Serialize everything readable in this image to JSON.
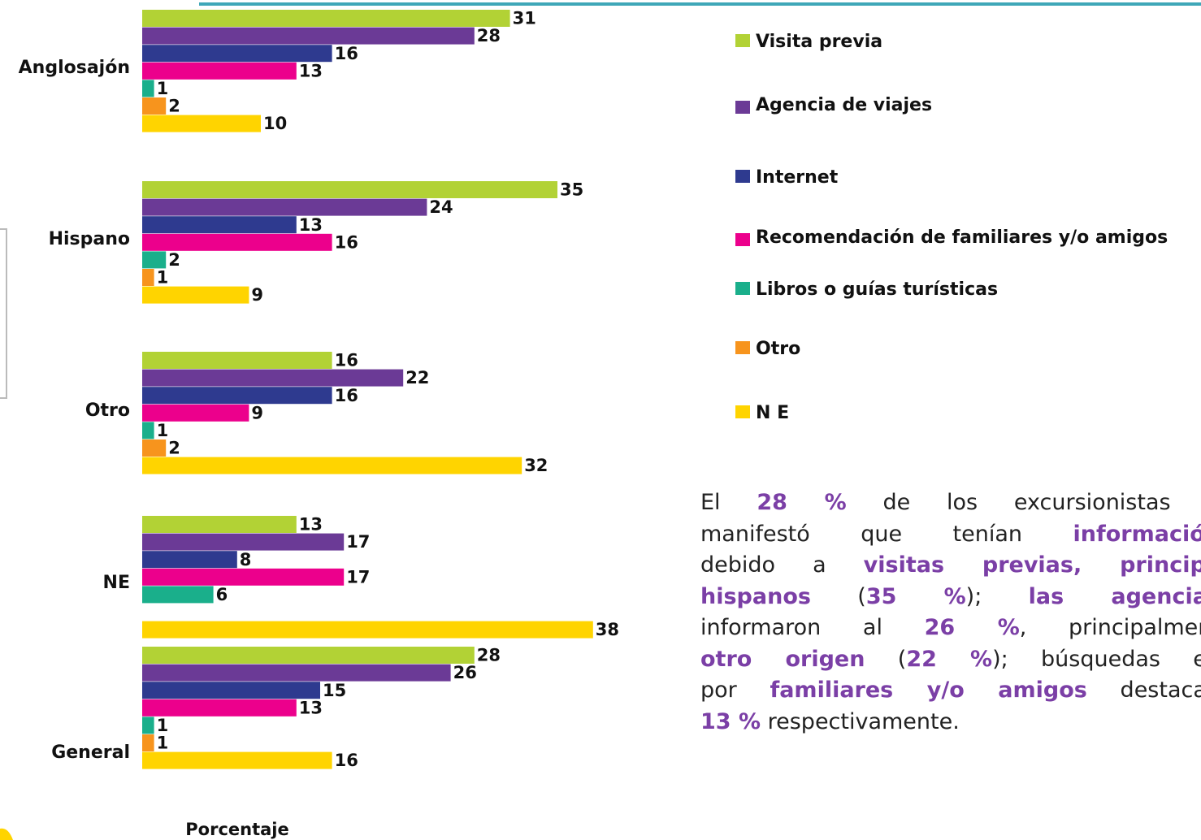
{
  "chart_data": {
    "type": "bar",
    "orientation": "horizontal",
    "categories": [
      "Anglosajón",
      "Hispano",
      "Otro",
      "NE",
      "General"
    ],
    "xlabel": "Porcentaje",
    "xlim": [
      0,
      40
    ],
    "series": [
      {
        "name": "Visita previa",
        "color": "#b2d235",
        "values": [
          31,
          35,
          16,
          13,
          28
        ]
      },
      {
        "name": "Agencia de viajes",
        "color": "#6b3a96",
        "values": [
          28,
          24,
          22,
          17,
          26
        ]
      },
      {
        "name": "Internet",
        "color": "#2e3a8f",
        "values": [
          16,
          13,
          16,
          8,
          15
        ]
      },
      {
        "name": "Recomendación de familiares y/o amigos",
        "color": "#ec008c",
        "values": [
          13,
          16,
          9,
          17,
          13
        ]
      },
      {
        "name": "Libros o guías turísticas",
        "color": "#1aaf8b",
        "values": [
          1,
          2,
          1,
          6,
          1
        ]
      },
      {
        "name": "Otro",
        "color": "#f7941d",
        "values": [
          2,
          1,
          2,
          null,
          1
        ]
      },
      {
        "name": "N E",
        "color": "#ffd400",
        "values": [
          10,
          9,
          32,
          38,
          16
        ]
      }
    ],
    "legend": "right"
  },
  "paragraph": [
    [
      {
        "text": "El "
      },
      {
        "text": "28 %",
        "highlight": true
      },
      {
        "text": " de los excursionistas e"
      }
    ],
    [
      {
        "text": "manifestó que tenían "
      },
      {
        "text": "información",
        "highlight": true
      }
    ],
    [
      {
        "text": "debido a "
      },
      {
        "text": "visitas previas, principa",
        "highlight": true
      }
    ],
    [
      {
        "text": "hispanos",
        "highlight": true
      },
      {
        "text": " ("
      },
      {
        "text": "35 %",
        "highlight": true
      },
      {
        "text": "); "
      },
      {
        "text": "las agencias",
        "highlight": true
      }
    ],
    [
      {
        "text": "informaron al "
      },
      {
        "text": "26 %",
        "highlight": true
      },
      {
        "text": ", principalment"
      }
    ],
    [
      {
        "text": "otro origen",
        "highlight": true
      },
      {
        "text": " ("
      },
      {
        "text": "22 %",
        "highlight": true
      },
      {
        "text": ");  búsquedas en"
      }
    ],
    [
      {
        "text": "por "
      },
      {
        "text": "familiares y/o amigos",
        "highlight": true
      },
      {
        "text": " destacan"
      }
    ],
    [
      {
        "text": "13 %",
        "highlight": true
      },
      {
        "text": " respectivamente."
      }
    ]
  ]
}
